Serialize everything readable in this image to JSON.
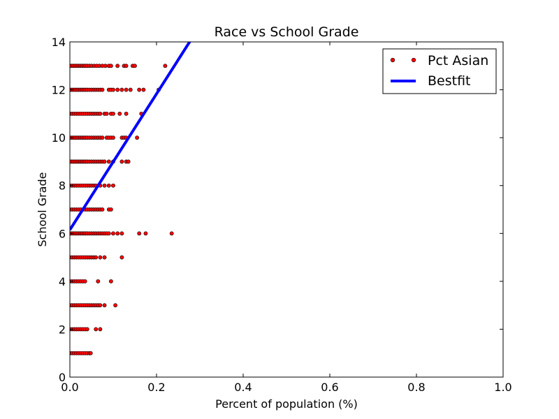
{
  "chart_data": {
    "type": "scatter",
    "title": "Race vs School Grade",
    "xlabel": "Percent of population (%)",
    "ylabel": "School Grade",
    "xlim": [
      0.0,
      1.0
    ],
    "ylim": [
      0,
      14
    ],
    "xticks": [
      "0.0",
      "0.2",
      "0.4",
      "0.6",
      "0.8",
      "1.0"
    ],
    "yticks": [
      "0",
      "2",
      "4",
      "6",
      "8",
      "10",
      "12",
      "14"
    ],
    "grid": false,
    "legend_position": "top-right",
    "series": [
      {
        "name": "Pct Asian",
        "kind": "scatter",
        "color": "#ff0000",
        "points": [
          {
            "grade": 13,
            "x": [
              0.0,
              0.004,
              0.008,
              0.012,
              0.016,
              0.02,
              0.024,
              0.028,
              0.032,
              0.036,
              0.04,
              0.045,
              0.05,
              0.056,
              0.062,
              0.068,
              0.075,
              0.082,
              0.09,
              0.095,
              0.11,
              0.125,
              0.13,
              0.145,
              0.15,
              0.22
            ]
          },
          {
            "grade": 12,
            "x": [
              0.0,
              0.004,
              0.008,
              0.012,
              0.016,
              0.02,
              0.024,
              0.028,
              0.032,
              0.036,
              0.04,
              0.045,
              0.05,
              0.055,
              0.06,
              0.065,
              0.07,
              0.075,
              0.09,
              0.095,
              0.1,
              0.11,
              0.12,
              0.13,
              0.14,
              0.16,
              0.17,
              0.205
            ]
          },
          {
            "grade": 11,
            "x": [
              0.0,
              0.005,
              0.01,
              0.015,
              0.02,
              0.025,
              0.03,
              0.035,
              0.04,
              0.045,
              0.05,
              0.055,
              0.06,
              0.065,
              0.07,
              0.08,
              0.085,
              0.095,
              0.1,
              0.115,
              0.13,
              0.165
            ]
          },
          {
            "grade": 10,
            "x": [
              0.0,
              0.004,
              0.008,
              0.012,
              0.016,
              0.02,
              0.024,
              0.028,
              0.032,
              0.036,
              0.04,
              0.045,
              0.05,
              0.055,
              0.06,
              0.065,
              0.07,
              0.075,
              0.085,
              0.09,
              0.095,
              0.1,
              0.12,
              0.125,
              0.13,
              0.155
            ]
          },
          {
            "grade": 9,
            "x": [
              0.0,
              0.004,
              0.008,
              0.012,
              0.016,
              0.02,
              0.024,
              0.028,
              0.032,
              0.036,
              0.04,
              0.045,
              0.05,
              0.055,
              0.06,
              0.065,
              0.07,
              0.075,
              0.08,
              0.09,
              0.1,
              0.12,
              0.13,
              0.135
            ]
          },
          {
            "grade": 8,
            "x": [
              0.0,
              0.005,
              0.01,
              0.015,
              0.02,
              0.025,
              0.03,
              0.035,
              0.04,
              0.045,
              0.05,
              0.055,
              0.06,
              0.07,
              0.08,
              0.09,
              0.1
            ]
          },
          {
            "grade": 7,
            "x": [
              0.0,
              0.005,
              0.01,
              0.015,
              0.02,
              0.025,
              0.03,
              0.035,
              0.04,
              0.045,
              0.05,
              0.055,
              0.06,
              0.065,
              0.07,
              0.075,
              0.09,
              0.095
            ]
          },
          {
            "grade": 6,
            "x": [
              0.0,
              0.004,
              0.008,
              0.012,
              0.016,
              0.02,
              0.024,
              0.028,
              0.032,
              0.036,
              0.04,
              0.045,
              0.05,
              0.055,
              0.06,
              0.065,
              0.07,
              0.075,
              0.08,
              0.085,
              0.09,
              0.1,
              0.11,
              0.12,
              0.16,
              0.175,
              0.235
            ]
          },
          {
            "grade": 5,
            "x": [
              0.0,
              0.005,
              0.01,
              0.015,
              0.02,
              0.025,
              0.03,
              0.035,
              0.04,
              0.045,
              0.05,
              0.055,
              0.06,
              0.07,
              0.08,
              0.12
            ]
          },
          {
            "grade": 4,
            "x": [
              0.0,
              0.005,
              0.01,
              0.015,
              0.02,
              0.025,
              0.03,
              0.035,
              0.065,
              0.095
            ]
          },
          {
            "grade": 3,
            "x": [
              0.0,
              0.005,
              0.01,
              0.015,
              0.02,
              0.025,
              0.03,
              0.035,
              0.04,
              0.045,
              0.05,
              0.055,
              0.06,
              0.065,
              0.07,
              0.08,
              0.105
            ]
          },
          {
            "grade": 2,
            "x": [
              0.0,
              0.005,
              0.01,
              0.015,
              0.02,
              0.025,
              0.03,
              0.035,
              0.04,
              0.06,
              0.07
            ]
          },
          {
            "grade": 1,
            "x": [
              0.0,
              0.005,
              0.01,
              0.015,
              0.02,
              0.025,
              0.03,
              0.035,
              0.04,
              0.045,
              0.048
            ]
          }
        ]
      },
      {
        "name": "Bestfit",
        "kind": "line",
        "color": "#0000ff",
        "line": {
          "slope": 28.4,
          "intercept": 6.15
        }
      }
    ]
  }
}
